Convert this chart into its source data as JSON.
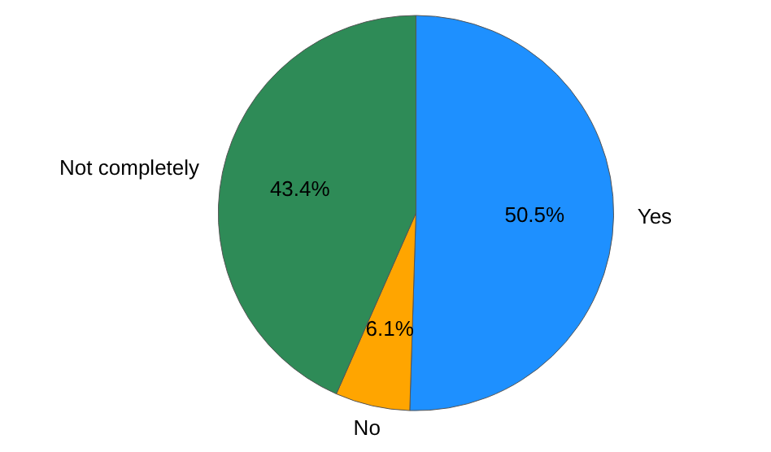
{
  "chart_data": {
    "type": "pie",
    "categories": [
      "Yes",
      "No",
      "Not completely"
    ],
    "values": [
      50.5,
      6.1,
      43.4
    ],
    "colors": [
      "#1e90ff",
      "#ffa500",
      "#2e8b57"
    ],
    "value_labels": [
      "50.5%",
      "6.1%",
      "43.4%"
    ]
  }
}
